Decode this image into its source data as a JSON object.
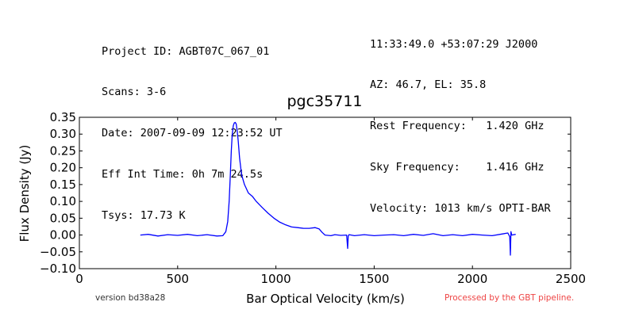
{
  "header": {
    "left": [
      "Project ID: AGBT07C_067_01",
      "Scans: 3-6",
      "Date: 2007-09-09 12:23:52 UT",
      "Eff Int Time: 0h 7m 24.5s",
      "Tsys: 17.73 K"
    ],
    "right": [
      "11:33:49.0 +53:07:29 J2000",
      "AZ: 46.7, EL: 35.8",
      "Rest Frequency:   1.420 GHz",
      "Sky Frequency:    1.416 GHz",
      "Velocity: 1013 km/s OPTI-BAR"
    ]
  },
  "footer": {
    "version": "version bd38a28",
    "processed": "Processed by the GBT pipeline.",
    "processed_color": "#ee4444"
  },
  "chart_data": {
    "type": "line",
    "title": "pgc35711",
    "xlabel": "Bar Optical Velocity (km/s)",
    "ylabel": "Flux Density (Jy)",
    "xlim": [
      0,
      2500
    ],
    "ylim": [
      -0.1,
      0.35
    ],
    "xticks": [
      "0",
      "500",
      "1000",
      "1500",
      "2000",
      "2500"
    ],
    "yticks": [
      "−0.10",
      "−0.05",
      "0.00",
      "0.05",
      "0.10",
      "0.15",
      "0.20",
      "0.25",
      "0.30",
      "0.35"
    ],
    "grid": false,
    "series": [
      {
        "color": "#0000ff",
        "x": [
          310,
          350,
          400,
          450,
          500,
          550,
          600,
          650,
          700,
          730,
          745,
          755,
          762,
          768,
          773,
          778,
          783,
          788,
          793,
          798,
          803,
          808,
          815,
          825,
          840,
          860,
          880,
          900,
          930,
          960,
          990,
          1020,
          1050,
          1080,
          1110,
          1140,
          1170,
          1200,
          1220,
          1235,
          1250,
          1280,
          1300,
          1330,
          1360,
          1365,
          1368,
          1372,
          1400,
          1450,
          1500,
          1550,
          1600,
          1650,
          1700,
          1750,
          1800,
          1850,
          1900,
          1950,
          2000,
          2050,
          2100,
          2150,
          2180,
          2190,
          2193,
          2196,
          2200,
          2220
        ],
        "y": [
          0.0,
          0.002,
          -0.003,
          0.001,
          -0.001,
          0.002,
          -0.002,
          0.001,
          -0.003,
          -0.002,
          0.01,
          0.04,
          0.1,
          0.18,
          0.25,
          0.3,
          0.325,
          0.333,
          0.335,
          0.33,
          0.31,
          0.28,
          0.23,
          0.18,
          0.15,
          0.125,
          0.115,
          0.1,
          0.082,
          0.065,
          0.05,
          0.038,
          0.03,
          0.024,
          0.022,
          0.02,
          0.02,
          0.022,
          0.018,
          0.008,
          0.0,
          -0.002,
          0.001,
          -0.001,
          0.0,
          -0.04,
          -0.003,
          0.001,
          -0.002,
          0.001,
          -0.002,
          0.0,
          0.001,
          -0.002,
          0.002,
          -0.001,
          0.004,
          -0.002,
          0.001,
          -0.002,
          0.002,
          0.0,
          -0.002,
          0.003,
          0.006,
          -0.005,
          -0.06,
          0.01,
          0.0,
          0.002
        ]
      }
    ]
  }
}
